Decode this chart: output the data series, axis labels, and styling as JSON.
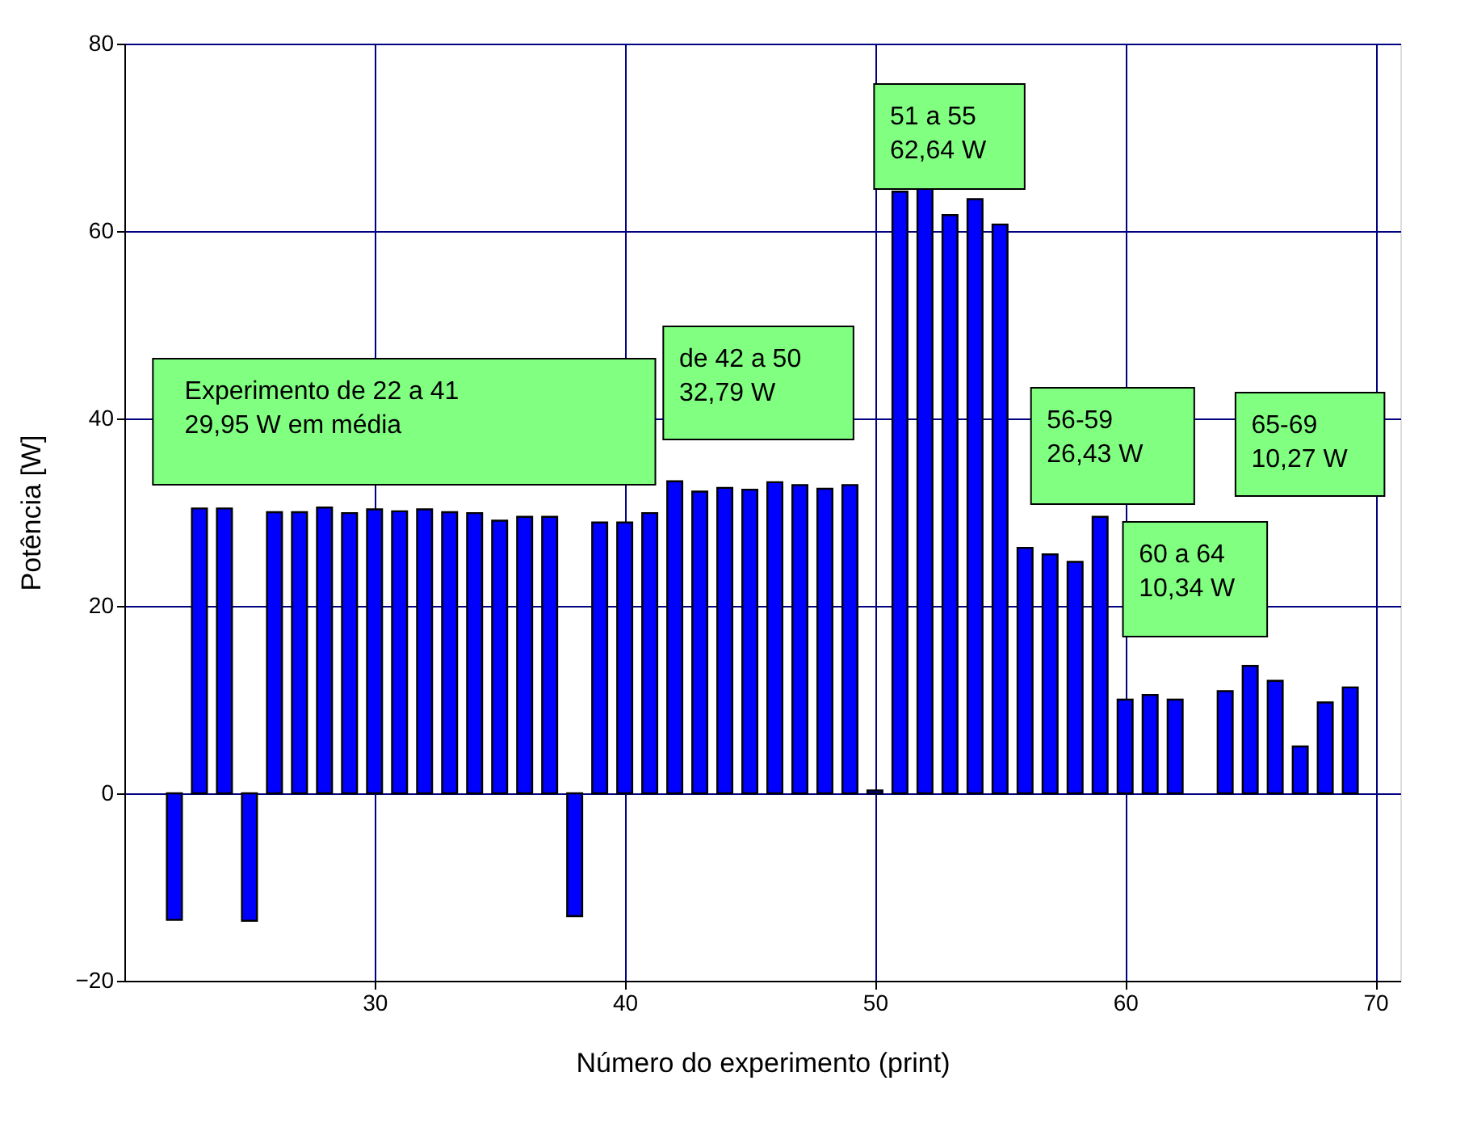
{
  "chart_data": {
    "type": "bar",
    "xlabel": "Número do experimento (print)",
    "ylabel": "Potência [W]",
    "x": [
      22,
      23,
      24,
      25,
      26,
      27,
      28,
      29,
      30,
      31,
      32,
      33,
      34,
      35,
      36,
      37,
      38,
      39,
      40,
      41,
      42,
      43,
      44,
      45,
      46,
      47,
      48,
      49,
      50,
      51,
      52,
      53,
      54,
      55,
      56,
      57,
      58,
      59,
      60,
      61,
      62,
      63,
      64,
      65,
      66,
      67,
      68,
      69
    ],
    "series": [
      {
        "color": "#0000ff",
        "values": [
          -13.5,
          30.4,
          30.4,
          -13.6,
          30.0,
          30.0,
          30.5,
          29.9,
          30.3,
          30.1,
          30.3,
          30.0,
          29.9,
          29.1,
          29.5,
          29.5,
          -13.1,
          28.9,
          28.9,
          29.9,
          33.3,
          32.2,
          32.6,
          32.4,
          33.2,
          32.9,
          32.5,
          32.9,
          0.3,
          64.2,
          64.5,
          61.7,
          63.4,
          60.7,
          26.2,
          25.5,
          24.7,
          29.5,
          10.0,
          10.5,
          10.0,
          null,
          10.9,
          13.6,
          12.0,
          5.0,
          9.7,
          11.3
        ]
      }
    ],
    "xlim": [
      20,
      71
    ],
    "xticks": [
      30,
      40,
      50,
      60,
      70
    ],
    "ylim": [
      -20,
      80
    ],
    "yticks": [
      -20,
      0,
      20,
      40,
      60,
      80
    ],
    "grid": true,
    "annotations": [
      "Experimento de 22 a 41\n29,95 W em média",
      "de 42 a 50\n32,79 W",
      "51 a 55\n62,64 W",
      "56-59\n26,43 W",
      "60 a 64\n10,34 W",
      "65-69\n10,27 W"
    ]
  }
}
